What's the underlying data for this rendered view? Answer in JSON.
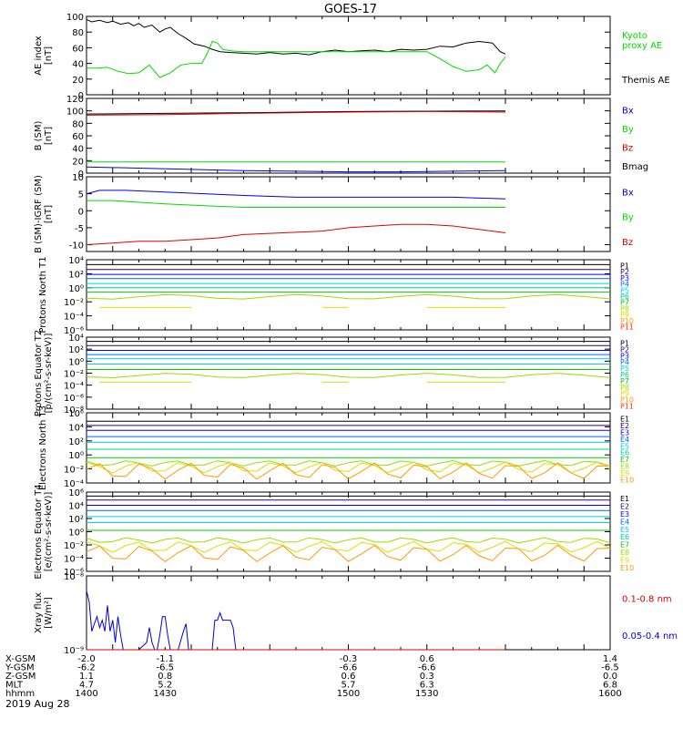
{
  "title": "GOES-17",
  "date": "2019 Aug 28",
  "colors": {
    "black": "#000000",
    "green": "#00dd00",
    "red": "#dd0000",
    "blue": "#0000dd",
    "p_colors": [
      "#000000",
      "#330066",
      "#0000ff",
      "#0066ff",
      "#00ccff",
      "#00cc99",
      "#00cc00",
      "#99dd00",
      "#dddd00",
      "#ff9900",
      "#ff3300",
      "#cc0000"
    ]
  },
  "chart_data": [
    {
      "type": "line",
      "ylabel": "AE index [nT]",
      "ylim": [
        0,
        100
      ],
      "yticks": [
        [
          "100",
          100
        ],
        [
          "80",
          80
        ],
        [
          "60",
          60
        ],
        [
          "40",
          40
        ],
        [
          "20",
          20
        ],
        [
          "0",
          0
        ]
      ],
      "legend": [
        {
          "label": "Kyoto proxy AE",
          "color": "#00dd00"
        },
        {
          "label": "Themis AE",
          "color": "#000000"
        }
      ],
      "series": [
        {
          "name": "Themis AE",
          "color": "#000000",
          "x": [
            1400,
            1402,
            1405,
            1408,
            1410,
            1413,
            1416,
            1418,
            1420,
            1422,
            1425,
            1428,
            1430,
            1432,
            1435,
            1438,
            1441,
            1445,
            1448,
            1451,
            1455,
            1460,
            1465,
            1470,
            1475,
            1480,
            1485,
            1490,
            1495,
            1500,
            1505,
            1510,
            1515,
            1520,
            1525,
            1530,
            1535,
            1540,
            1545,
            1550,
            1555,
            1558,
            1560
          ],
          "y": [
            96,
            93,
            95,
            92,
            94,
            90,
            92,
            88,
            91,
            86,
            89,
            80,
            84,
            86,
            78,
            72,
            65,
            62,
            58,
            55,
            54,
            53,
            52,
            54,
            52,
            53,
            51,
            55,
            57,
            55,
            56,
            57,
            55,
            58,
            57,
            58,
            62,
            61,
            66,
            68,
            66,
            55,
            52
          ]
        },
        {
          "name": "Kyoto proxy AE",
          "color": "#00dd00",
          "x": [
            1400,
            1404,
            1408,
            1412,
            1416,
            1420,
            1424,
            1428,
            1432,
            1436,
            1440,
            1444,
            1446,
            1448,
            1450,
            1452,
            1455,
            1460,
            1470,
            1480,
            1490,
            1500,
            1510,
            1520,
            1530,
            1535,
            1540,
            1545,
            1550,
            1553,
            1556,
            1558,
            1560
          ],
          "y": [
            34,
            34,
            35,
            30,
            27,
            28,
            38,
            22,
            28,
            38,
            40,
            40,
            52,
            68,
            66,
            58,
            56,
            55,
            55,
            55,
            55,
            55,
            55,
            55,
            55,
            46,
            36,
            30,
            32,
            38,
            28,
            40,
            48
          ]
        }
      ]
    },
    {
      "type": "line",
      "ylabel": "B (SM) [nT]",
      "ylim": [
        0,
        120
      ],
      "yticks": [
        [
          "120",
          120
        ],
        [
          "100",
          100
        ],
        [
          "80",
          80
        ],
        [
          "60",
          60
        ],
        [
          "40",
          40
        ],
        [
          "20",
          20
        ],
        [
          "0",
          0
        ]
      ],
      "legend": [
        {
          "label": "Bx",
          "color": "#0000dd"
        },
        {
          "label": "By",
          "color": "#00dd00"
        },
        {
          "label": "Bz",
          "color": "#dd0000"
        },
        {
          "label": "Bmag",
          "color": "#000000"
        }
      ],
      "series": [
        {
          "name": "Bmag",
          "color": "#000000",
          "x": [
            1400,
            1430,
            1460,
            1500,
            1560
          ],
          "y": [
            95,
            96,
            97,
            99,
            100
          ]
        },
        {
          "name": "Bz",
          "color": "#dd0000",
          "x": [
            1400,
            1430,
            1460,
            1500,
            1530,
            1560
          ],
          "y": [
            93,
            94,
            96,
            98,
            99,
            98
          ]
        },
        {
          "name": "By",
          "color": "#00dd00",
          "x": [
            1400,
            1430,
            1460,
            1500,
            1560
          ],
          "y": [
            18,
            18,
            18,
            18,
            18
          ]
        },
        {
          "name": "Bx",
          "color": "#0000dd",
          "x": [
            1400,
            1420,
            1440,
            1460,
            1480,
            1500,
            1520,
            1540,
            1560
          ],
          "y": [
            10,
            8,
            6,
            4,
            3,
            2,
            2,
            3,
            4
          ]
        }
      ]
    },
    {
      "type": "line",
      "ylabel": "B (SM)-IGRF (SM) [nT]",
      "ylim": [
        -12,
        10
      ],
      "yticks": [
        [
          "10",
          10
        ],
        [
          "5",
          5
        ],
        [
          "0",
          0
        ],
        [
          "-5",
          -5
        ],
        [
          "-10",
          -10
        ]
      ],
      "legend": [
        {
          "label": "Bx",
          "color": "#0000dd"
        },
        {
          "label": "By",
          "color": "#00dd00"
        },
        {
          "label": "Bz",
          "color": "#dd0000"
        }
      ],
      "series": [
        {
          "name": "Bx",
          "color": "#0000dd",
          "x": [
            1400,
            1405,
            1415,
            1430,
            1445,
            1460,
            1480,
            1500,
            1520,
            1540,
            1560
          ],
          "y": [
            5,
            6,
            6,
            5.5,
            5,
            4.5,
            4,
            4,
            4,
            4,
            3.5
          ]
        },
        {
          "name": "By",
          "color": "#00dd00",
          "x": [
            1400,
            1410,
            1420,
            1430,
            1445,
            1460,
            1480,
            1500,
            1520,
            1540,
            1560
          ],
          "y": [
            3,
            3,
            2.5,
            2,
            1.5,
            1,
            1,
            1,
            1,
            1,
            1
          ]
        },
        {
          "name": "Bz",
          "color": "#dd0000",
          "x": [
            1400,
            1410,
            1420,
            1430,
            1440,
            1450,
            1460,
            1475,
            1490,
            1500,
            1510,
            1520,
            1530,
            1540,
            1550,
            1560
          ],
          "y": [
            -10,
            -9.5,
            -9,
            -9,
            -8.5,
            -8,
            -7,
            -6.5,
            -6,
            -5,
            -4.5,
            -4,
            -4,
            -4.5,
            -5.5,
            -6.5
          ]
        }
      ]
    },
    {
      "type": "line",
      "ylabel": "Protons North T1",
      "ylim_log": [
        -6,
        4
      ],
      "yticks": [
        [
          "10⁴",
          4
        ],
        [
          "10²",
          2
        ],
        [
          "10⁰",
          0
        ],
        [
          "10⁻²",
          -2
        ],
        [
          "10⁻⁴",
          -4
        ],
        [
          "10⁻⁶",
          -6
        ]
      ],
      "legend_labels": [
        "P1",
        "P2",
        "P3",
        "P4",
        "P5",
        "P6",
        "P7",
        "P8",
        "P9",
        "P10",
        "P11"
      ],
      "levels": [
        3.3,
        2.6,
        1.9,
        1.3,
        0.6,
        0.0,
        -0.6,
        -1.3,
        -2.8,
        null,
        null
      ]
    },
    {
      "type": "line",
      "ylabel": "Protons Equator T2 [p/(cm²-s-sr-keV)]",
      "ylim_log": [
        -8,
        4
      ],
      "yticks": [
        [
          "10⁴",
          4
        ],
        [
          "10²",
          2
        ],
        [
          "10⁰",
          0
        ],
        [
          "10⁻²",
          -2
        ],
        [
          "10⁻⁴",
          -4
        ],
        [
          "10⁻⁶",
          -6
        ],
        [
          "10⁻⁸",
          -8
        ]
      ],
      "legend_labels": [
        "P1",
        "P2",
        "P3",
        "P4",
        "P5",
        "P6",
        "P7",
        "P8",
        "P9",
        "P10",
        "P11"
      ],
      "levels": [
        3.3,
        2.6,
        1.8,
        1.1,
        0.4,
        -0.5,
        -1.4,
        -2.4,
        -3.5,
        null,
        null
      ]
    },
    {
      "type": "line",
      "ylabel": "Electrons North T3",
      "ylim_log": [
        -4,
        6
      ],
      "yticks": [
        [
          "10⁶",
          6
        ],
        [
          "10⁴",
          4
        ],
        [
          "10²",
          2
        ],
        [
          "10⁰",
          0
        ],
        [
          "10⁻²",
          -2
        ],
        [
          "10⁻⁴",
          -4
        ]
      ],
      "legend_labels": [
        "E1",
        "E2",
        "E3",
        "E4",
        "E5",
        "E6",
        "E7",
        "E8",
        "E9",
        "E10"
      ],
      "levels": [
        4.8,
        4.2,
        3.5,
        2.6,
        1.8,
        0.8,
        -0.4,
        -1.2,
        -1.8,
        -2.3
      ]
    },
    {
      "type": "line",
      "ylabel": "Electrons Equator T4 [e/(cm²-s-sr-keV)]",
      "ylim_log": [
        -6,
        6
      ],
      "yticks": [
        [
          "10⁶",
          6
        ],
        [
          "10⁴",
          4
        ],
        [
          "10²",
          2
        ],
        [
          "10⁰",
          0
        ],
        [
          "10⁻²",
          -2
        ],
        [
          "10⁻⁴",
          -4
        ],
        [
          "10⁻⁶",
          -6
        ]
      ],
      "legend_labels": [
        "E1",
        "E2",
        "E3",
        "E4",
        "E5",
        "E6",
        "E7",
        "E8",
        "E9",
        "E10"
      ],
      "levels": [
        5.4,
        4.8,
        4.0,
        3.2,
        2.3,
        1.4,
        0.2,
        -1.3,
        -2.3,
        -3.3
      ]
    },
    {
      "type": "line",
      "ylabel": "Xray flux [W/m²]",
      "ylim_log": [
        -9,
        -8
      ],
      "yticks": [
        [
          "10⁻⁸",
          -8
        ],
        [
          "10⁻⁹",
          -9
        ]
      ],
      "legend": [
        {
          "label": "0.1-0.8 nm",
          "color": "#dd0000"
        },
        {
          "label": "0.05-0.4 nm",
          "color": "#0000dd"
        }
      ],
      "series": [
        {
          "name": "0.05-0.4 nm",
          "color": "#0000dd",
          "x": [
            1400,
            1401,
            1402,
            1403,
            1404,
            1405,
            1406,
            1407,
            1408,
            1409,
            1410,
            1411,
            1412,
            1413,
            1414,
            1415,
            1416,
            1417,
            1418,
            1420,
            1423,
            1424,
            1425,
            1426,
            1427,
            1428,
            1429,
            1430,
            1431,
            1432,
            1433,
            1434,
            1435,
            1437,
            1438,
            1439,
            1440,
            1441,
            1442,
            1443,
            1444,
            1448,
            1449,
            1450,
            1451,
            1452,
            1453,
            1454,
            1455,
            1456,
            1457,
            1458
          ],
          "y": [
            -8.2,
            -8.35,
            -8.75,
            -8.65,
            -8.55,
            -8.7,
            -8.6,
            -8.75,
            -8.4,
            -8.75,
            -8.6,
            -8.9,
            -8.55,
            -8.8,
            -9,
            -9,
            -9,
            -9,
            -9,
            -9,
            -8.9,
            -8.7,
            -8.9,
            -9,
            -9,
            -8.8,
            -8.55,
            -8.55,
            -8.8,
            -9,
            -9,
            -9,
            -9,
            -8.75,
            -8.65,
            -9,
            -9,
            -9,
            -9,
            -9,
            -9,
            -9,
            -8.6,
            -8.6,
            -8.5,
            -8.6,
            -8.6,
            -8.6,
            -8.6,
            -8.7,
            -9,
            -9
          ]
        },
        {
          "name": "0.1-0.8 nm",
          "color": "#dd0000",
          "x": [
            1400,
            1560
          ],
          "y": [
            -9,
            -9
          ]
        }
      ]
    }
  ],
  "x_axis": {
    "xlim": [
      1400,
      1600
    ],
    "rows": [
      {
        "label": "X-GSM",
        "values": [
          "-2.0",
          "-1.1",
          "-0.3",
          "0.6",
          "1.4"
        ]
      },
      {
        "label": "Y-GSM",
        "values": [
          "-6.2",
          "-6.5",
          "-6.6",
          "-6.6",
          "-6.5"
        ]
      },
      {
        "label": "Z-GSM",
        "values": [
          "1.1",
          "0.8",
          "0.6",
          "0.3",
          "0.0"
        ]
      },
      {
        "label": "MLT",
        "values": [
          "4.7",
          "5.2",
          "5.7",
          "6.3",
          "6.8"
        ]
      },
      {
        "label": "hhmm",
        "values": [
          "1400",
          "1430",
          "1500",
          "1530",
          "1600"
        ]
      }
    ]
  }
}
